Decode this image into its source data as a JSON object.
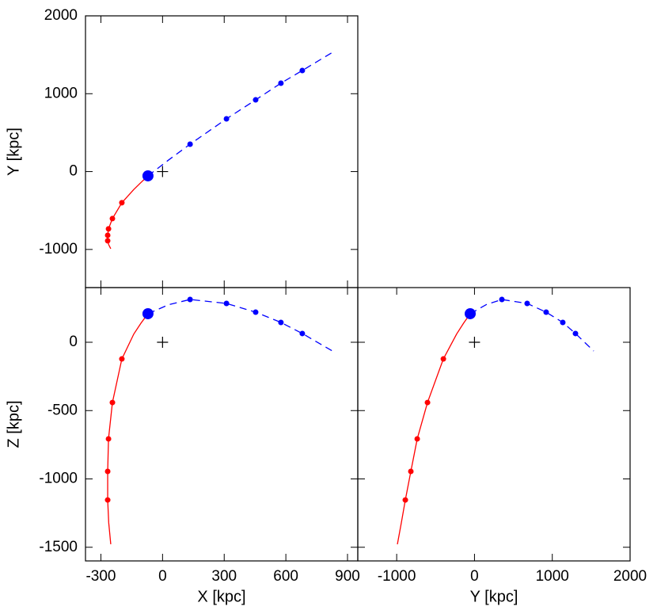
{
  "chart_data": [
    {
      "type": "line",
      "ylabel": "Y [kpc]",
      "xlim": [
        -375,
        950
      ],
      "ylim": [
        -1490,
        2000
      ],
      "xticks": [
        -300,
        0,
        300,
        600,
        900
      ],
      "xtick_labels": false,
      "yticks": [
        -1000,
        0,
        1000,
        2000
      ],
      "series": [
        {
          "mode": "lines",
          "color": "#ff0000",
          "x": [
            -71,
            -105,
            -140,
            -198,
            -244,
            -263,
            -267,
            -267,
            -262,
            -252
          ],
          "values": [
            -55,
            -140,
            -230,
            -400,
            -604,
            -736,
            -818,
            -889,
            -940,
            -991
          ]
        },
        {
          "mode": "lines",
          "dash": true,
          "color": "#0000ff",
          "x": [
            -71,
            30,
            134,
            311,
            453,
            576,
            680,
            827
          ],
          "values": [
            -55,
            150,
            352,
            677,
            921,
            1135,
            1298,
            1532
          ]
        },
        {
          "mode": "markers",
          "color": "#ff0000",
          "size": 3.5,
          "x": [
            -198,
            -244,
            -263,
            -267,
            -267
          ],
          "values": [
            -400,
            -604,
            -736,
            -818,
            -889
          ]
        },
        {
          "mode": "markers",
          "color": "#0000ff",
          "size": 3.5,
          "x": [
            134,
            311,
            453,
            576,
            680
          ],
          "values": [
            352,
            677,
            921,
            1135,
            1298
          ]
        },
        {
          "mode": "markers",
          "color": "#0000ff",
          "size": 7,
          "x": [
            -71
          ],
          "values": [
            -55
          ]
        },
        {
          "mode": "plus",
          "color": "#000000",
          "size": 7,
          "x": [
            0
          ],
          "values": [
            0
          ]
        }
      ]
    },
    {
      "type": "line",
      "xlabel": "X [kpc]",
      "ylabel": "Z [kpc]",
      "xlim": [
        -375,
        950
      ],
      "ylim": [
        -1600,
        400
      ],
      "xticks": [
        -300,
        0,
        300,
        600,
        900
      ],
      "yticks": [
        -1500,
        -1000,
        -500,
        0
      ],
      "series": [
        {
          "mode": "lines",
          "color": "#ff0000",
          "x": [
            -71,
            -105,
            -140,
            -198,
            -244,
            -263,
            -267,
            -267,
            -262,
            -252
          ],
          "values": [
            209,
            140,
            60,
            -122,
            -441,
            -707,
            -945,
            -1154,
            -1320,
            -1478
          ]
        },
        {
          "mode": "lines",
          "dash": true,
          "color": "#0000ff",
          "x": [
            -71,
            30,
            134,
            311,
            453,
            576,
            680,
            827
          ],
          "values": [
            209,
            275,
            313,
            284,
            220,
            145,
            64,
            -64
          ]
        },
        {
          "mode": "markers",
          "color": "#ff0000",
          "size": 3.5,
          "x": [
            -198,
            -244,
            -263,
            -267,
            -267
          ],
          "values": [
            -122,
            -441,
            -707,
            -945,
            -1154
          ]
        },
        {
          "mode": "markers",
          "color": "#0000ff",
          "size": 3.5,
          "x": [
            134,
            311,
            453,
            576,
            680
          ],
          "values": [
            313,
            284,
            220,
            145,
            64
          ]
        },
        {
          "mode": "markers",
          "color": "#0000ff",
          "size": 7,
          "x": [
            -71
          ],
          "values": [
            209
          ]
        },
        {
          "mode": "plus",
          "color": "#000000",
          "size": 7,
          "x": [
            0
          ],
          "values": [
            0
          ]
        }
      ]
    },
    {
      "type": "line",
      "xlabel": "Y [kpc]",
      "xlim": [
        -1500,
        2000
      ],
      "ylim": [
        -1600,
        400
      ],
      "xticks": [
        -1000,
        0,
        1000,
        2000
      ],
      "yticks": [
        -1500,
        -1000,
        -500,
        0
      ],
      "ytick_labels": false,
      "series": [
        {
          "mode": "lines",
          "color": "#ff0000",
          "x": [
            -55,
            -140,
            -230,
            -400,
            -604,
            -736,
            -818,
            -889,
            -940,
            -991
          ],
          "values": [
            209,
            140,
            60,
            -122,
            -441,
            -707,
            -945,
            -1154,
            -1320,
            -1478
          ]
        },
        {
          "mode": "lines",
          "dash": true,
          "color": "#0000ff",
          "x": [
            -55,
            150,
            352,
            677,
            921,
            1135,
            1298,
            1532
          ],
          "values": [
            209,
            275,
            313,
            284,
            220,
            145,
            64,
            -64
          ]
        },
        {
          "mode": "markers",
          "color": "#ff0000",
          "size": 3.5,
          "x": [
            -400,
            -604,
            -736,
            -818,
            -889
          ],
          "values": [
            -122,
            -441,
            -707,
            -945,
            -1154
          ]
        },
        {
          "mode": "markers",
          "color": "#0000ff",
          "size": 3.5,
          "x": [
            352,
            677,
            921,
            1135,
            1298
          ],
          "values": [
            313,
            284,
            220,
            145,
            64
          ]
        },
        {
          "mode": "markers",
          "color": "#0000ff",
          "size": 7,
          "x": [
            -55
          ],
          "values": [
            209
          ]
        },
        {
          "mode": "plus",
          "color": "#000000",
          "size": 7,
          "x": [
            0
          ],
          "values": [
            0
          ]
        }
      ]
    }
  ]
}
